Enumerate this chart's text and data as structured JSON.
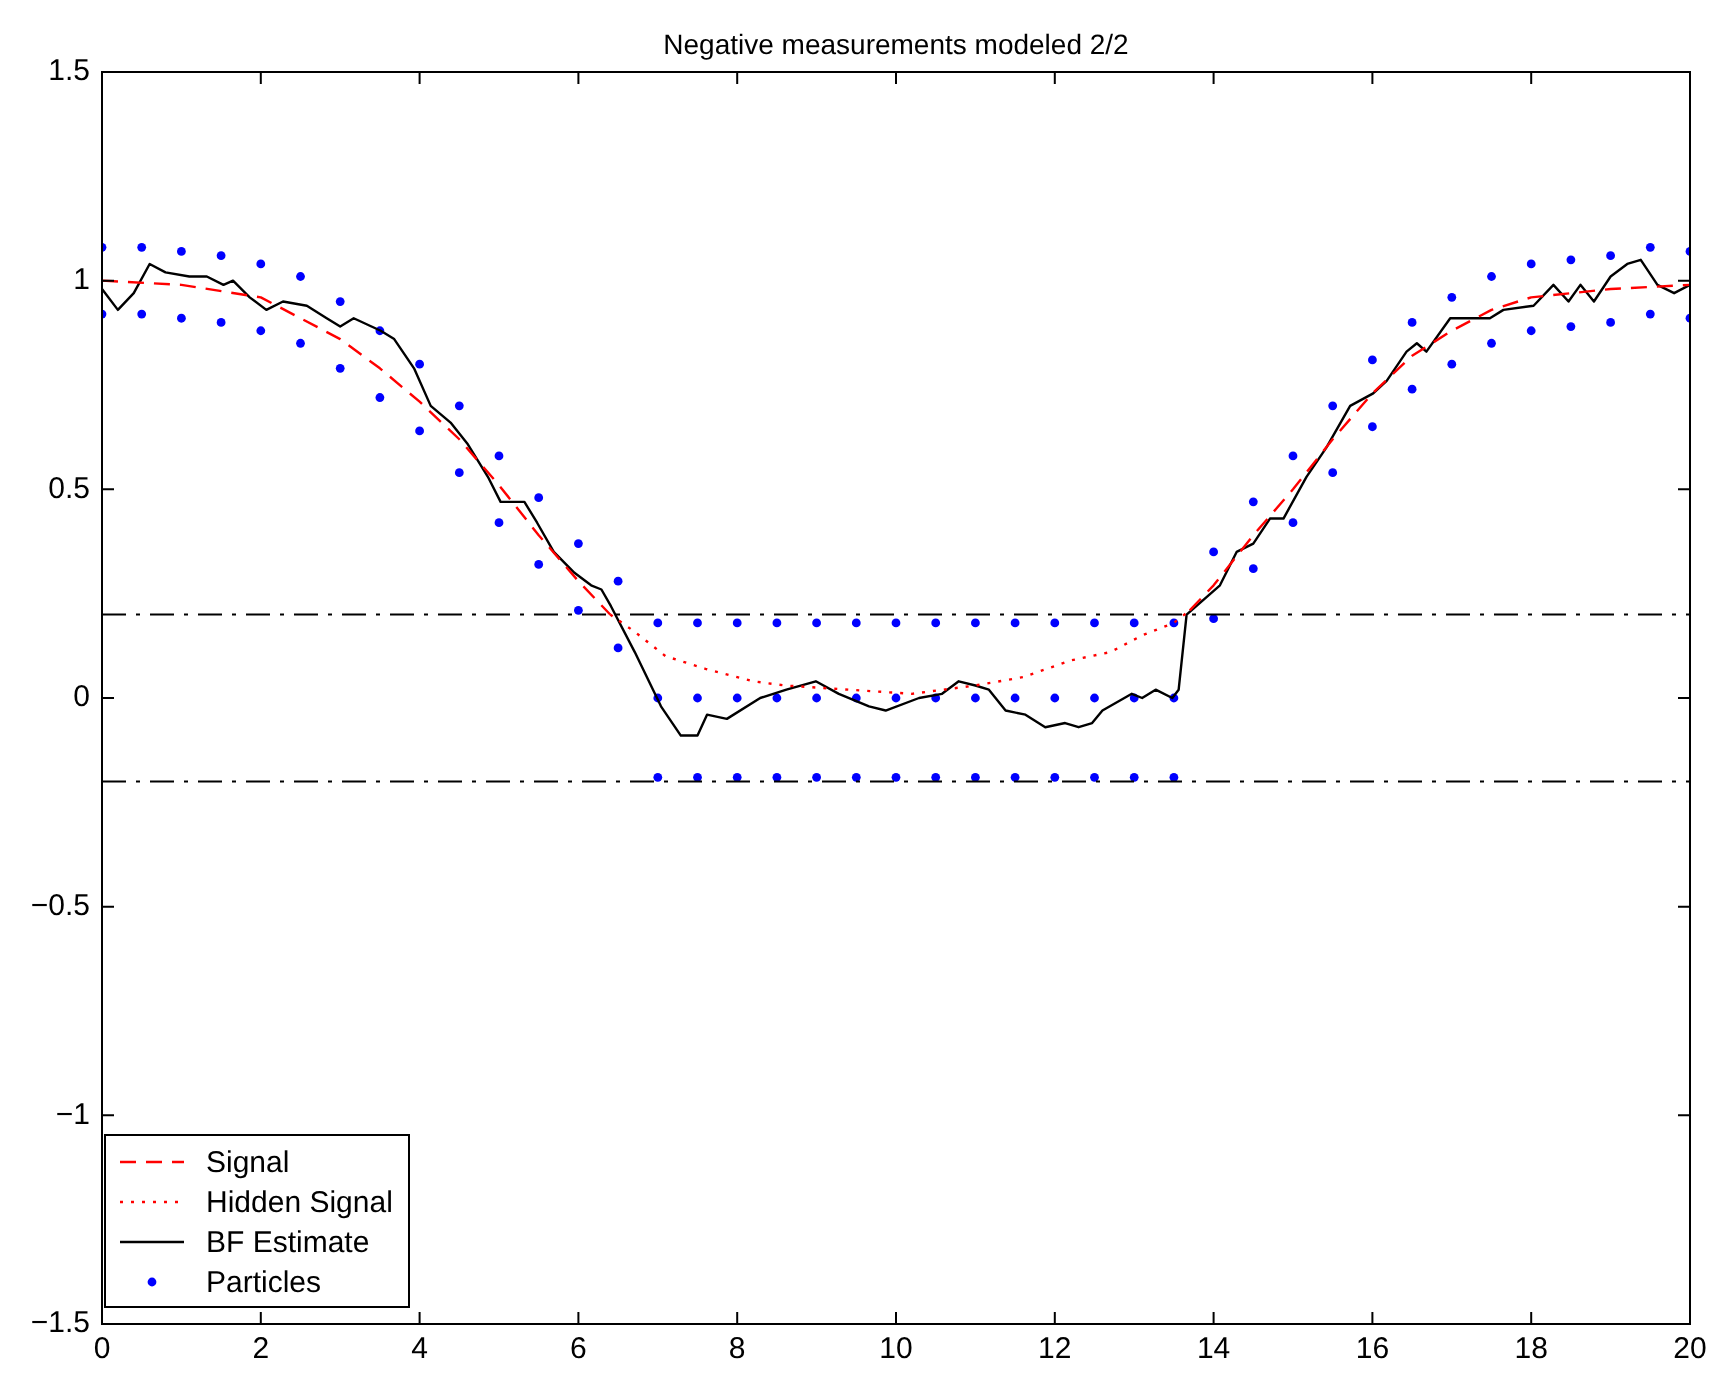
{
  "chart_data": {
    "type": "line",
    "title": "Negative measurements modeled 2/2",
    "xlim": [
      0,
      20
    ],
    "xticks": [
      0,
      2,
      4,
      6,
      8,
      10,
      12,
      14,
      16,
      18,
      20
    ],
    "ylim": [
      -1.5,
      1.5
    ],
    "yticks": [
      {
        "value": -1.5,
        "label": "−1.5"
      },
      {
        "value": -1,
        "label": "−1"
      },
      {
        "value": -0.5,
        "label": "−0.5"
      },
      0,
      0.5,
      1,
      1.5
    ],
    "grid": false,
    "legend": "bottom left",
    "ref_lines": [
      {
        "axis": "y",
        "value": 0.2,
        "color": "#000000",
        "line_style": "dashed"
      },
      {
        "axis": "y",
        "value": -0.2,
        "color": "#000000",
        "line_style": "dashed"
      }
    ],
    "series": [
      {
        "name": "Signal",
        "color": "#ff0000",
        "line_style": "dashed",
        "marker": "none",
        "x": [
          0,
          1,
          2,
          3,
          3.5,
          4,
          4.5,
          5,
          5.5,
          6,
          6.4,
          6.5,
          13.7,
          14,
          14.5,
          15,
          15.5,
          16,
          16.5,
          17,
          17.5,
          18,
          19,
          20
        ],
        "values": [
          1.0,
          0.99,
          0.96,
          0.86,
          0.79,
          0.71,
          0.62,
          0.51,
          0.39,
          0.28,
          0.2,
          null,
          0.21,
          0.27,
          0.39,
          0.5,
          0.62,
          0.73,
          0.82,
          0.88,
          0.93,
          0.96,
          0.98,
          0.99
        ]
      },
      {
        "name": "Hidden Signal",
        "color": "#ff0000",
        "line_style": "dotted",
        "marker": "none",
        "x": [
          6.4,
          6.7,
          7.1,
          7.6,
          8.2,
          8.6,
          9.4,
          10.2,
          11,
          11.6,
          12.2,
          12.7,
          13.1,
          13.5,
          13.7
        ],
        "values": [
          0.2,
          0.16,
          0.1,
          0.07,
          0.04,
          0.03,
          0.02,
          0.01,
          0.03,
          0.05,
          0.09,
          0.11,
          0.15,
          0.18,
          0.21
        ]
      },
      {
        "name": "BF Estimate",
        "color": "#000000",
        "line_style": "solid",
        "marker": "none",
        "x": [
          0,
          0.2,
          0.4,
          0.6,
          0.8,
          1.1,
          1.32,
          1.53,
          1.65,
          1.86,
          2.07,
          2.28,
          2.58,
          2.83,
          3.0,
          3.17,
          3.51,
          3.68,
          3.93,
          4.14,
          4.39,
          4.6,
          4.86,
          5.02,
          5.19,
          5.32,
          5.48,
          5.69,
          5.95,
          6.16,
          6.29,
          6.41,
          6.71,
          7.04,
          7.29,
          7.5,
          7.62,
          7.87,
          8.29,
          8.62,
          8.99,
          9.28,
          9.66,
          9.87,
          10.29,
          10.58,
          10.79,
          11.0,
          11.17,
          11.38,
          11.63,
          11.88,
          12.13,
          12.3,
          12.47,
          12.6,
          12.97,
          13.1,
          13.27,
          13.48,
          13.56,
          13.66,
          14.08,
          14.29,
          14.5,
          14.71,
          14.88,
          15.17,
          15.42,
          15.72,
          16.01,
          16.18,
          16.43,
          16.56,
          16.68,
          16.98,
          17.23,
          17.48,
          17.65,
          18.03,
          18.28,
          18.47,
          18.62,
          18.79,
          19.0,
          19.21,
          19.38,
          19.59,
          19.8,
          20
        ],
        "values": [
          0.98,
          0.93,
          0.97,
          1.04,
          1.02,
          1.01,
          1.01,
          0.99,
          1.0,
          0.96,
          0.93,
          0.95,
          0.94,
          0.91,
          0.89,
          0.91,
          0.88,
          0.86,
          0.79,
          0.7,
          0.66,
          0.61,
          0.53,
          0.47,
          0.47,
          0.47,
          0.42,
          0.35,
          0.3,
          0.27,
          0.26,
          0.22,
          0.11,
          -0.02,
          -0.09,
          -0.09,
          -0.04,
          -0.05,
          0.0,
          0.02,
          0.04,
          0.01,
          -0.02,
          -0.03,
          0.0,
          0.01,
          0.04,
          0.03,
          0.02,
          -0.03,
          -0.04,
          -0.07,
          -0.06,
          -0.07,
          -0.06,
          -0.03,
          0.01,
          0.0,
          0.02,
          0.0,
          0.02,
          0.2,
          0.27,
          0.35,
          0.37,
          0.43,
          0.43,
          0.53,
          0.6,
          0.7,
          0.73,
          0.76,
          0.83,
          0.85,
          0.83,
          0.91,
          0.91,
          0.91,
          0.93,
          0.94,
          0.99,
          0.95,
          0.99,
          0.95,
          1.01,
          1.04,
          1.05,
          0.99,
          0.97,
          0.99
        ]
      },
      {
        "name": "Particles",
        "type": "scatter",
        "color": "#0000ff",
        "marker": "circle",
        "x": [
          0,
          0,
          0.5,
          0.5,
          1,
          1,
          1.5,
          1.5,
          2,
          2,
          2.5,
          2.5,
          3,
          3,
          3.5,
          3.5,
          4,
          4,
          4.5,
          4.5,
          5,
          5,
          5.5,
          5.5,
          6,
          6,
          6.5,
          6.5,
          7,
          7,
          7,
          7.5,
          7.5,
          7.5,
          8,
          8,
          8,
          8.5,
          8.5,
          8.5,
          9,
          9,
          9,
          9.5,
          9.5,
          9.5,
          10,
          10,
          10,
          10.5,
          10.5,
          10.5,
          11,
          11,
          11,
          11.5,
          11.5,
          11.5,
          12,
          12,
          12,
          12.5,
          12.5,
          12.5,
          13,
          13,
          13,
          13.5,
          13.5,
          13.5,
          14,
          14,
          14.5,
          14.5,
          15,
          15,
          15.5,
          15.5,
          16,
          16,
          16.5,
          16.5,
          17,
          17,
          17.5,
          17.5,
          18,
          18,
          18.5,
          18.5,
          19,
          19,
          19.5,
          19.5,
          20,
          20
        ],
        "values": [
          0.92,
          1.08,
          0.92,
          1.08,
          0.91,
          1.07,
          0.9,
          1.06,
          0.88,
          1.04,
          0.85,
          1.01,
          0.79,
          0.95,
          0.72,
          0.88,
          0.64,
          0.8,
          0.54,
          0.7,
          0.42,
          0.58,
          0.32,
          0.48,
          0.21,
          0.37,
          0.12,
          0.28,
          -0.19,
          0,
          0.18,
          -0.19,
          0,
          0.18,
          -0.19,
          0,
          0.18,
          -0.19,
          0,
          0.18,
          -0.19,
          0,
          0.18,
          -0.19,
          0,
          0.18,
          -0.19,
          0,
          0.18,
          -0.19,
          0,
          0.18,
          -0.19,
          0,
          0.18,
          -0.19,
          0,
          0.18,
          -0.19,
          0,
          0.18,
          -0.19,
          0,
          0.18,
          -0.19,
          0,
          0.18,
          -0.19,
          0,
          0.18,
          0.19,
          0.35,
          0.31,
          0.47,
          0.42,
          0.58,
          0.54,
          0.7,
          0.65,
          0.81,
          0.74,
          0.9,
          0.8,
          0.96,
          0.85,
          1.01,
          0.88,
          1.04,
          0.89,
          1.05,
          0.9,
          1.06,
          0.92,
          1.08,
          0.91,
          1.07
        ]
      }
    ]
  }
}
